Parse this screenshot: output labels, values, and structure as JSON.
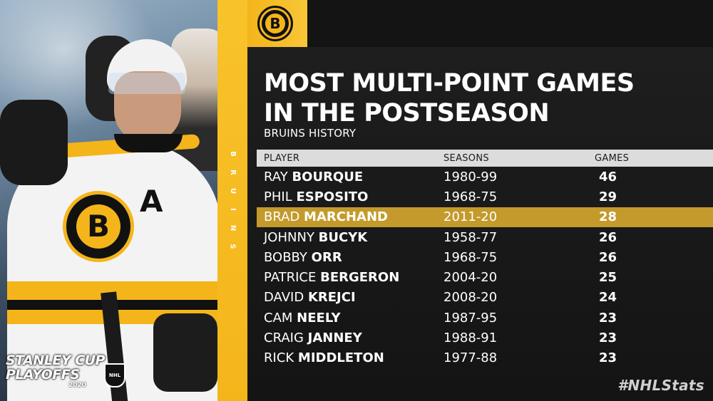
{
  "title": {
    "line1": "MOST MULTI-POINT GAMES",
    "line2": "IN THE POSTSEASON"
  },
  "subtitle": "BRUINS HISTORY",
  "side_label": [
    "B",
    "R",
    "U",
    "I",
    "N",
    "S"
  ],
  "jersey_letter": "A",
  "crest_letter": "B",
  "logo_letter": "B",
  "playoffs_logo": {
    "line1": "STANLEY CUP",
    "line2": "PLAYOFFS",
    "year": "2020",
    "shield": "NHL"
  },
  "hashtag": "#NHLStats",
  "colors": {
    "gold": "#f4b51b",
    "highlight_row": "#c39a2b",
    "background": "#141414",
    "header_row": "#dcdcdc"
  },
  "table": {
    "headers": {
      "player": "PLAYER",
      "seasons": "SEASONS",
      "games": "GAMES"
    },
    "rows": [
      {
        "first": "RAY",
        "last": "BOURQUE",
        "seasons": "1980-99",
        "games": "46",
        "highlight": false
      },
      {
        "first": "PHIL",
        "last": "ESPOSITO",
        "seasons": "1968-75",
        "games": "29",
        "highlight": false
      },
      {
        "first": "BRAD",
        "last": "MARCHAND",
        "seasons": "2011-20",
        "games": "28",
        "highlight": true
      },
      {
        "first": "JOHNNY",
        "last": "BUCYK",
        "seasons": "1958-77",
        "games": "26",
        "highlight": false
      },
      {
        "first": "BOBBY",
        "last": "ORR",
        "seasons": "1968-75",
        "games": "26",
        "highlight": false
      },
      {
        "first": "PATRICE",
        "last": "BERGERON",
        "seasons": "2004-20",
        "games": "25",
        "highlight": false
      },
      {
        "first": "DAVID",
        "last": "KREJCI",
        "seasons": "2008-20",
        "games": "24",
        "highlight": false
      },
      {
        "first": "CAM",
        "last": "NEELY",
        "seasons": "1987-95",
        "games": "23",
        "highlight": false
      },
      {
        "first": "CRAIG",
        "last": "JANNEY",
        "seasons": "1988-91",
        "games": "23",
        "highlight": false
      },
      {
        "first": "RICK",
        "last": "MIDDLETON",
        "seasons": "1977-88",
        "games": "23",
        "highlight": false
      }
    ]
  }
}
